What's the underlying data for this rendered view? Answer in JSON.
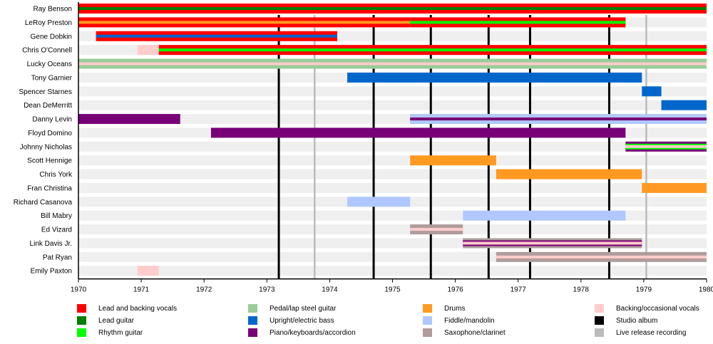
{
  "chart_data": {
    "type": "timeline",
    "title": "",
    "xlabel": "",
    "ylabel": "",
    "xlim": [
      1970,
      1980
    ],
    "x_ticks": [
      "1970",
      "1971",
      "1972",
      "1973",
      "1974",
      "1975",
      "1976",
      "1977",
      "1978",
      "1979",
      "1980"
    ],
    "colors": {
      "vocals": "#ff0000",
      "lead_guitar": "#008000",
      "rhythm_guitar": "#00ff00",
      "steel_guitar": "#99cc99",
      "bass": "#0066cc",
      "keys": "#770077",
      "drums": "#ff9922",
      "fiddle": "#b0c8ff",
      "sax": "#b09c9c",
      "backing": "#ffcccc",
      "studio": "#000000",
      "live": "#bbbbbb",
      "row_background": "#efefef"
    },
    "members": [
      {
        "name": "Ray Benson",
        "bars": [
          {
            "start": 1970,
            "end": 1980,
            "layers": [
              "vocals",
              "lead_guitar"
            ]
          }
        ]
      },
      {
        "name": "LeRoy Preston",
        "bars": [
          {
            "start": 1970,
            "end": 1975.28,
            "layers": [
              "vocals",
              "drums"
            ]
          },
          {
            "start": 1975.28,
            "end": 1978.71,
            "layers": [
              "vocals",
              "rhythm_guitar"
            ]
          }
        ]
      },
      {
        "name": "Gene Dobkin",
        "bars": [
          {
            "start": 1970.28,
            "end": 1974.12,
            "layers": [
              "vocals",
              "bass"
            ]
          }
        ]
      },
      {
        "name": "Chris O'Connell",
        "bars": [
          {
            "start": 1970.94,
            "end": 1971.28,
            "layers": [
              "backing"
            ]
          },
          {
            "start": 1971.28,
            "end": 1980,
            "layers": [
              "vocals",
              "rhythm_guitar"
            ]
          }
        ]
      },
      {
        "name": "Lucky Oceans",
        "bars": [
          {
            "start": 1970,
            "end": 1980,
            "layers": [
              "steel_guitar",
              "backing"
            ]
          }
        ]
      },
      {
        "name": "Tony Garnier",
        "bars": [
          {
            "start": 1974.28,
            "end": 1978.97,
            "layers": [
              "bass"
            ]
          }
        ]
      },
      {
        "name": "Spencer Starnes",
        "bars": [
          {
            "start": 1978.97,
            "end": 1979.28,
            "layers": [
              "bass"
            ]
          }
        ]
      },
      {
        "name": "Dean DeMerritt",
        "bars": [
          {
            "start": 1979.28,
            "end": 1980,
            "layers": [
              "bass"
            ]
          }
        ]
      },
      {
        "name": "Danny Levin",
        "bars": [
          {
            "start": 1970,
            "end": 1971.62,
            "layers": [
              "keys"
            ]
          },
          {
            "start": 1975.28,
            "end": 1980,
            "layers": [
              "fiddle",
              "keys"
            ]
          }
        ]
      },
      {
        "name": "Floyd Domino",
        "bars": [
          {
            "start": 1972.11,
            "end": 1978.71,
            "layers": [
              "keys"
            ]
          }
        ]
      },
      {
        "name": "Johnny Nicholas",
        "bars": [
          {
            "start": 1978.71,
            "end": 1980,
            "layers": [
              "keys",
              "rhythm_guitar",
              "backing"
            ]
          }
        ]
      },
      {
        "name": "Scott Hennige",
        "bars": [
          {
            "start": 1975.28,
            "end": 1976.65,
            "layers": [
              "drums"
            ]
          }
        ]
      },
      {
        "name": "Chris York",
        "bars": [
          {
            "start": 1976.65,
            "end": 1978.97,
            "layers": [
              "drums"
            ]
          }
        ]
      },
      {
        "name": "Fran Christina",
        "bars": [
          {
            "start": 1978.97,
            "end": 1980,
            "layers": [
              "drums"
            ]
          }
        ]
      },
      {
        "name": "Richard Casanova",
        "bars": [
          {
            "start": 1974.28,
            "end": 1975.28,
            "layers": [
              "fiddle"
            ]
          }
        ]
      },
      {
        "name": "Bill Mabry",
        "bars": [
          {
            "start": 1976.12,
            "end": 1978.71,
            "layers": [
              "fiddle"
            ]
          }
        ]
      },
      {
        "name": "Ed Vizard",
        "bars": [
          {
            "start": 1975.28,
            "end": 1976.12,
            "layers": [
              "sax",
              "backing"
            ]
          }
        ]
      },
      {
        "name": "Link Davis Jr.",
        "bars": [
          {
            "start": 1976.12,
            "end": 1978.97,
            "layers": [
              "sax",
              "keys",
              "backing"
            ]
          }
        ]
      },
      {
        "name": "Pat Ryan",
        "bars": [
          {
            "start": 1976.65,
            "end": 1980,
            "layers": [
              "sax",
              "backing"
            ]
          }
        ]
      },
      {
        "name": "Emily Paxton",
        "bars": [
          {
            "start": 1970.94,
            "end": 1971.28,
            "layers": [
              "backing"
            ]
          }
        ]
      }
    ],
    "releases": [
      {
        "date": 1973.19,
        "type": "studio"
      },
      {
        "date": 1973.76,
        "type": "live"
      },
      {
        "date": 1974.7,
        "type": "studio"
      },
      {
        "date": 1975.61,
        "type": "studio"
      },
      {
        "date": 1976.53,
        "type": "studio"
      },
      {
        "date": 1977.19,
        "type": "studio"
      },
      {
        "date": 1978.45,
        "type": "studio"
      },
      {
        "date": 1979.04,
        "type": "live"
      }
    ],
    "legend": [
      {
        "key": "vocals",
        "label": "Lead and backing vocals"
      },
      {
        "key": "lead_guitar",
        "label": "Lead guitar"
      },
      {
        "key": "rhythm_guitar",
        "label": "Rhythm guitar"
      },
      {
        "key": "steel_guitar",
        "label": "Pedal/lap steel guitar"
      },
      {
        "key": "bass",
        "label": "Upright/electric bass"
      },
      {
        "key": "keys",
        "label": "Piano/keyboards/accordion"
      },
      {
        "key": "drums",
        "label": "Drums"
      },
      {
        "key": "fiddle",
        "label": "Fiddle/mandolin"
      },
      {
        "key": "sax",
        "label": "Saxophone/clarinet"
      },
      {
        "key": "backing",
        "label": "Backing/occasional vocals"
      },
      {
        "key": "studio",
        "label": "Studio album"
      },
      {
        "key": "live",
        "label": "Live release recording"
      }
    ],
    "legend_position": "bottom"
  }
}
